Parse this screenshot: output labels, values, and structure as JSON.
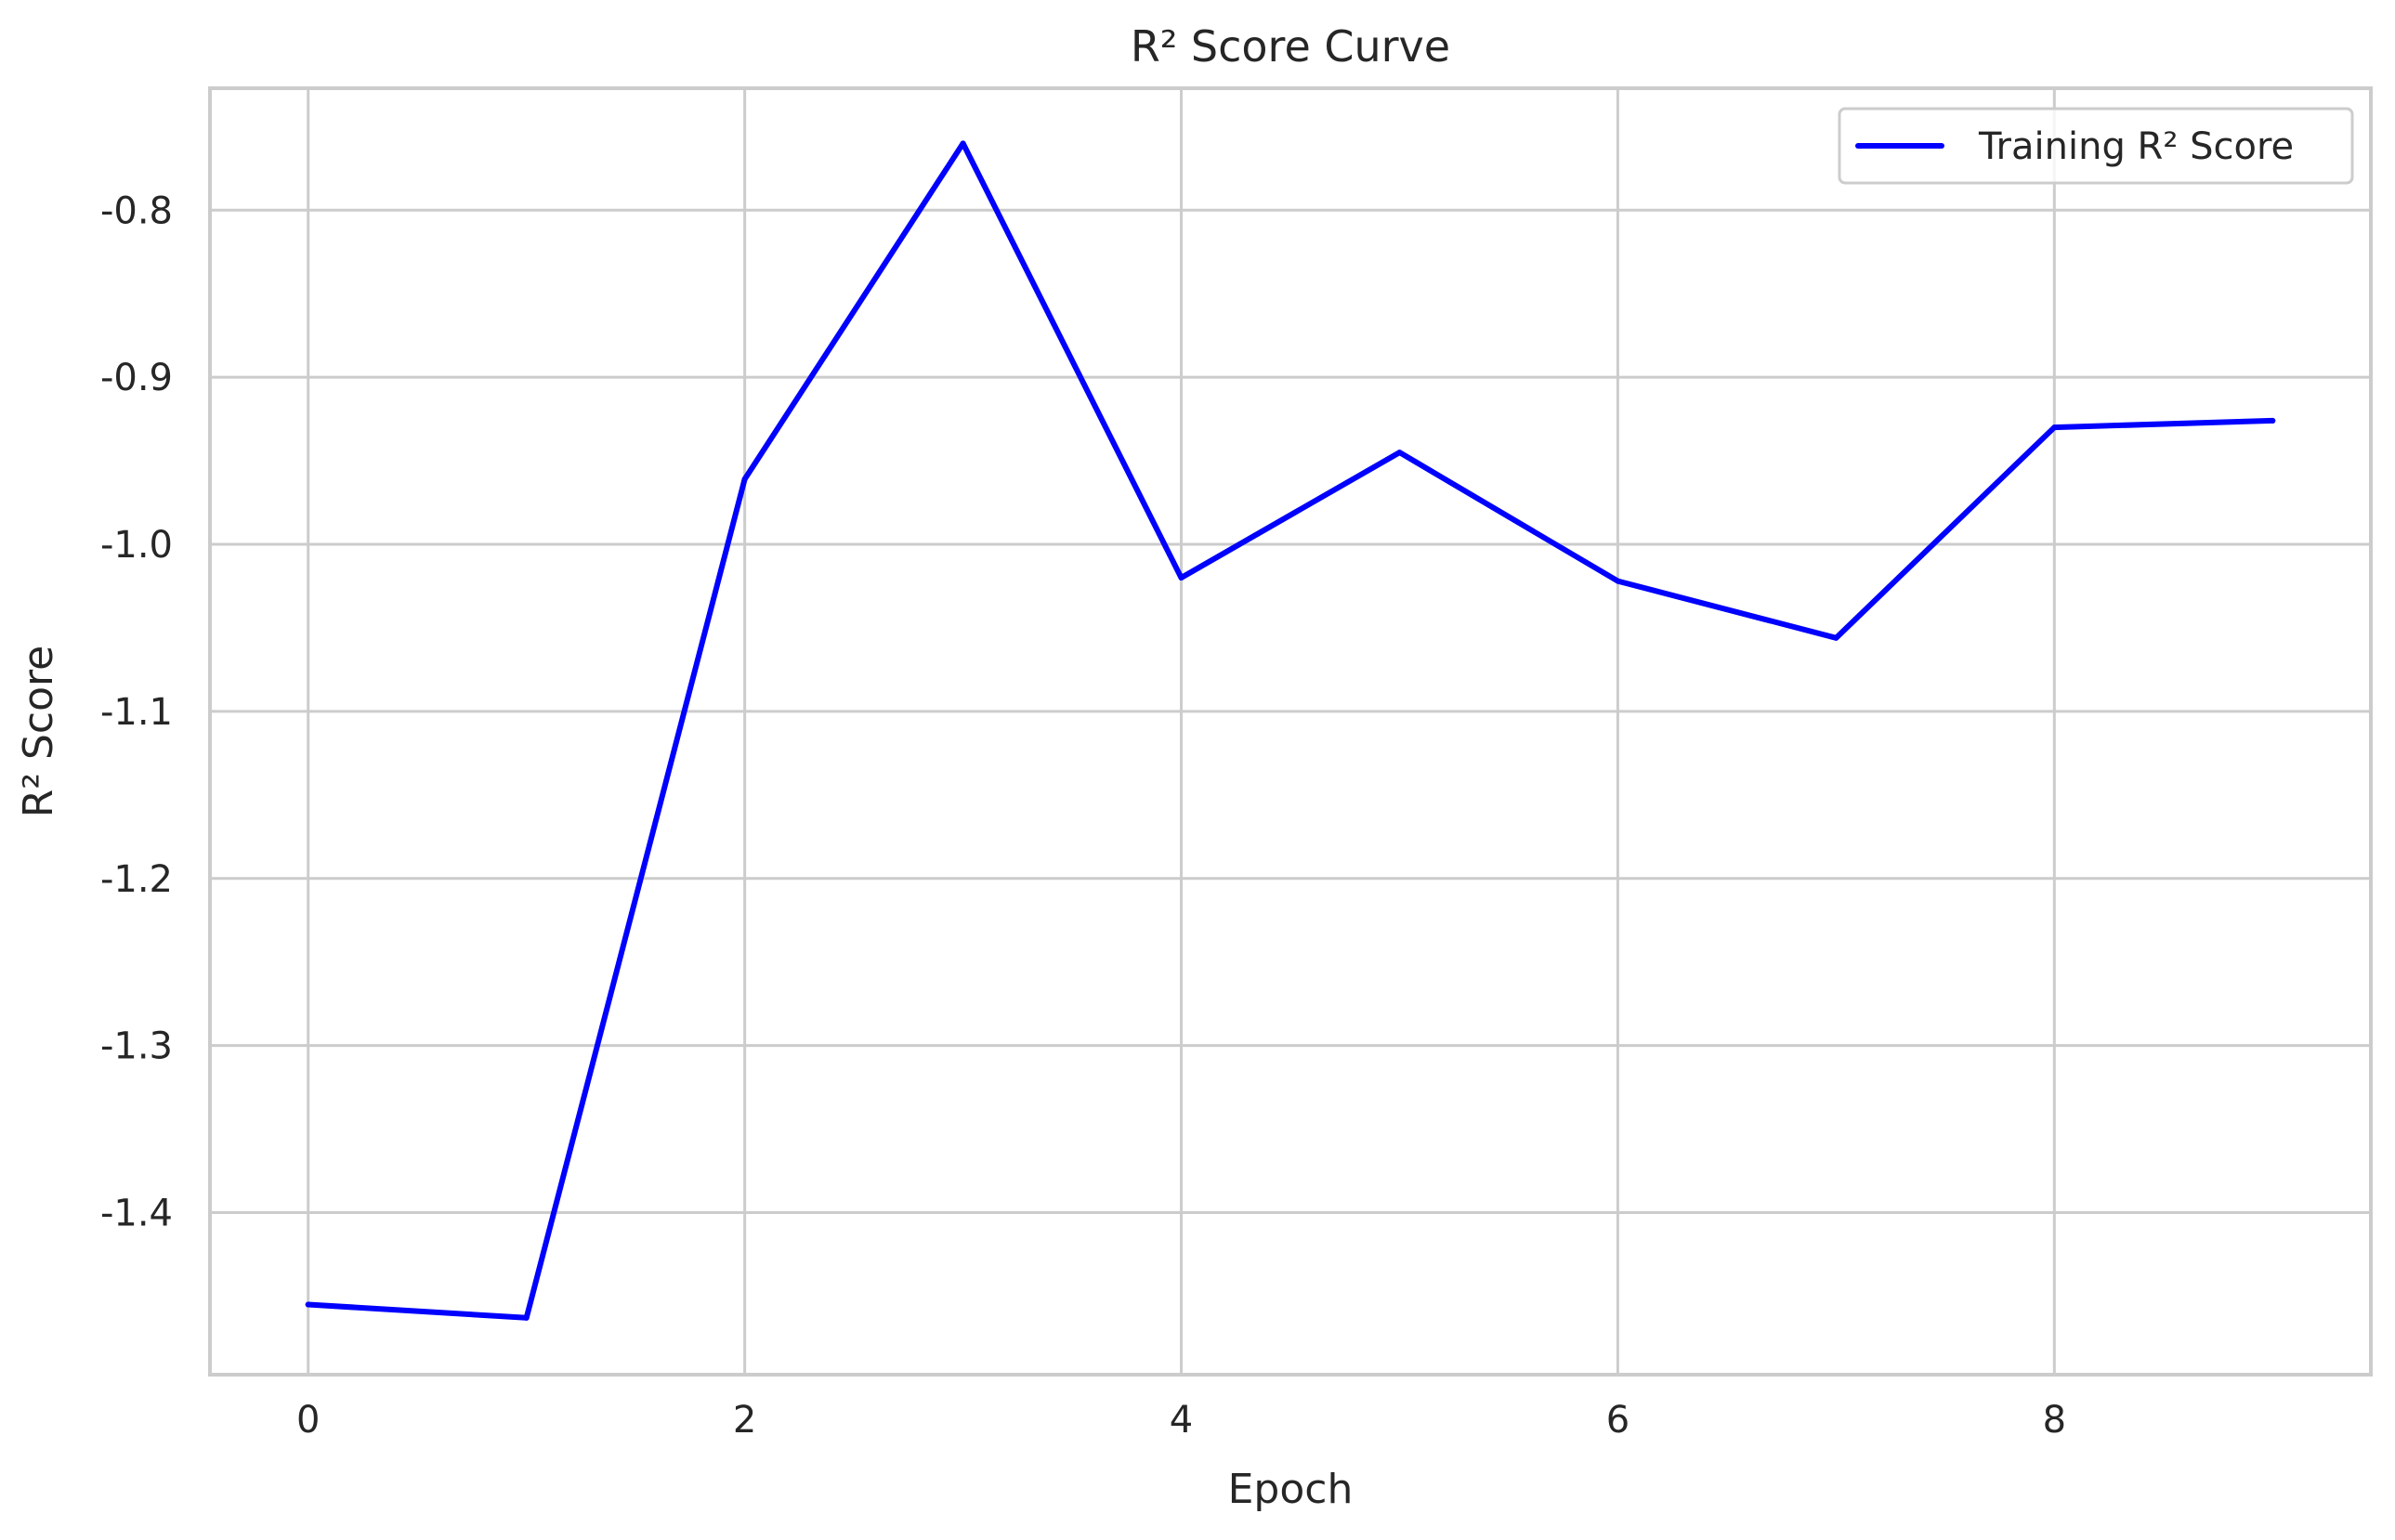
{
  "chart_data": {
    "type": "line",
    "title": "R² Score Curve",
    "xlabel": "Epoch",
    "ylabel": "R² Score",
    "xlim": [
      -0.45,
      9.45
    ],
    "ylim": [
      -1.497,
      -0.727
    ],
    "xticks": [
      0,
      2,
      4,
      6,
      8
    ],
    "yticks": [
      -1.4,
      -1.3,
      -1.2,
      -1.1,
      -1.0,
      -0.9,
      -0.8
    ],
    "ytick_labels": [
      "-1.4",
      "-1.3",
      "-1.2",
      "-1.1",
      "-1.0",
      "-0.9",
      "-0.8"
    ],
    "grid": true,
    "legend_position": "top-right",
    "series": [
      {
        "name": "Training R² Score",
        "color": "#0000ff",
        "x": [
          0,
          1,
          2,
          3,
          4,
          5,
          6,
          7,
          8,
          9
        ],
        "y": [
          -1.455,
          -1.463,
          -0.961,
          -0.76,
          -1.02,
          -0.945,
          -1.022,
          -1.056,
          -0.93,
          -0.926
        ]
      }
    ]
  }
}
